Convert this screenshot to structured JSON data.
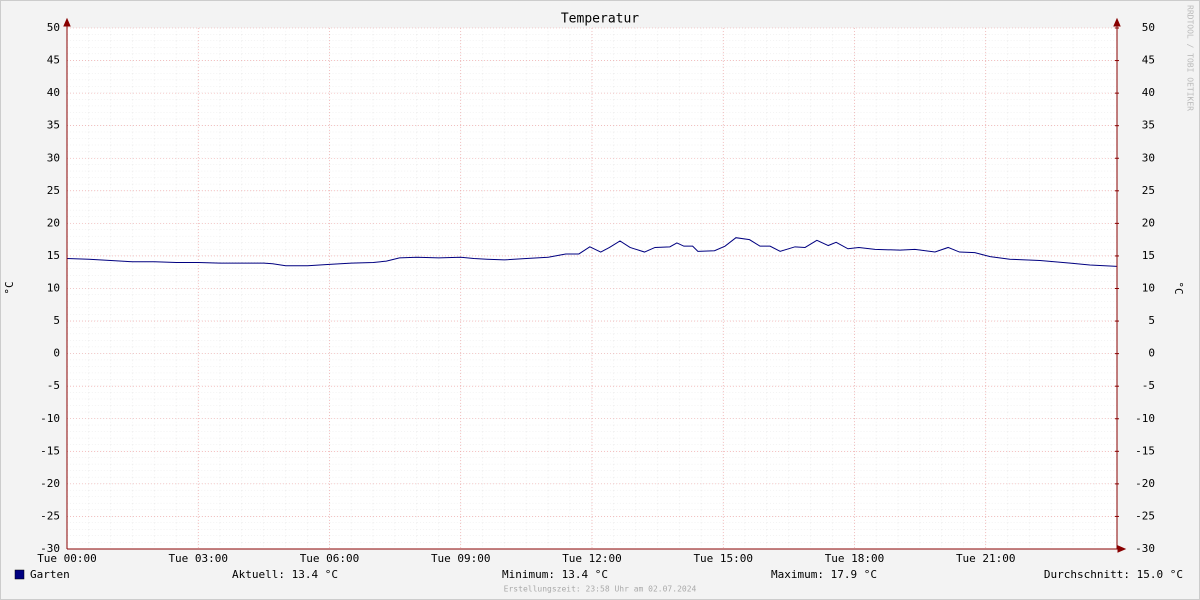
{
  "chart_data": {
    "type": "line",
    "title": "Temperatur",
    "y_label": "°C",
    "y2_label": "°C",
    "watermark": "RRDTOOL / TOBI OETIKER",
    "footer": "Erstellungszeit: 23:58 Uhr am 02.07.2024",
    "x": [
      0,
      0.5,
      1,
      1.5,
      2,
      2.5,
      3,
      3.5,
      4,
      4.5,
      4.7,
      5,
      5.5,
      6,
      6.5,
      7,
      7.3,
      7.6,
      8,
      8.5,
      9,
      9.3,
      9.6,
      10,
      10.5,
      11,
      11.4,
      11.7,
      11.95,
      12.2,
      12.4,
      12.64,
      12.87,
      13.2,
      13.44,
      13.78,
      13.94,
      14.1,
      14.3,
      14.42,
      14.8,
      15.04,
      15.29,
      15.6,
      15.84,
      16.07,
      16.3,
      16.64,
      16.87,
      17.14,
      17.4,
      17.58,
      17.85,
      18.1,
      18.47,
      19.04,
      19.38,
      19.84,
      20.14,
      20.4,
      20.75,
      21.1,
      21.55,
      22.24,
      22.93,
      23.38,
      24
    ],
    "series": [
      {
        "name": "Garten",
        "color": "#000080",
        "values": [
          14.6,
          14.5,
          14.3,
          14.1,
          14.1,
          14.0,
          14.0,
          13.9,
          13.9,
          13.9,
          13.8,
          13.5,
          13.5,
          13.7,
          13.9,
          14.0,
          14.2,
          14.7,
          14.8,
          14.7,
          14.8,
          14.6,
          14.5,
          14.4,
          14.6,
          14.8,
          15.3,
          15.3,
          16.4,
          15.6,
          16.3,
          17.3,
          16.3,
          15.6,
          16.3,
          16.4,
          17.0,
          16.5,
          16.5,
          15.7,
          15.8,
          16.5,
          17.8,
          17.5,
          16.5,
          16.5,
          15.7,
          16.4,
          16.3,
          17.4,
          16.6,
          17.1,
          16.1,
          16.3,
          16.0,
          15.9,
          16.0,
          15.6,
          16.3,
          15.6,
          15.5,
          14.9,
          14.5,
          14.3,
          13.9,
          13.6,
          13.4
        ]
      }
    ],
    "xlim": [
      0,
      24
    ],
    "xticks": [
      {
        "value": 0,
        "label": "Tue 00:00"
      },
      {
        "value": 3,
        "label": "Tue 03:00"
      },
      {
        "value": 6,
        "label": "Tue 06:00"
      },
      {
        "value": 9,
        "label": "Tue 09:00"
      },
      {
        "value": 12,
        "label": "Tue 12:00"
      },
      {
        "value": 15,
        "label": "Tue 15:00"
      },
      {
        "value": 18,
        "label": "Tue 18:00"
      },
      {
        "value": 21,
        "label": "Tue 21:00"
      }
    ],
    "ylim": [
      -30,
      50
    ],
    "yticks": [
      -30,
      -25,
      -20,
      -15,
      -10,
      -5,
      0,
      5,
      10,
      15,
      20,
      25,
      30,
      35,
      40,
      45,
      50
    ],
    "y2lim": [
      -30,
      50
    ],
    "y2ticks": [
      -30,
      -25,
      -20,
      -15,
      -10,
      -5,
      0,
      5,
      10,
      15,
      20,
      25,
      30,
      35,
      40,
      45,
      50
    ],
    "grid": true,
    "stats": [
      "Aktuell: 13.4 °C",
      "Minimum: 13.4 °C",
      "Maximum: 17.9 °C",
      "Durchschnitt: 15.0 °C"
    ]
  }
}
